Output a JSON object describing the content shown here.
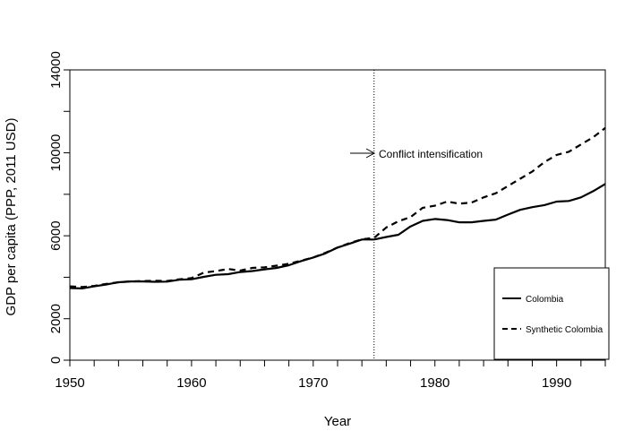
{
  "chart_data": {
    "type": "line",
    "xlabel": "Year",
    "ylabel": "GDP per capita (PPP, 2011 USD)",
    "xlim": [
      1950,
      1994
    ],
    "ylim": [
      0,
      14000
    ],
    "x_ticks": [
      1950,
      1960,
      1970,
      1980,
      1990
    ],
    "y_ticks": [
      0,
      2000,
      6000,
      10000,
      14000
    ],
    "x_tick_labels": [
      "1950",
      "1960",
      "1970",
      "1980",
      "1990"
    ],
    "y_tick_labels": [
      "0",
      "2000",
      "6000",
      "10000",
      "14000"
    ],
    "grid": false,
    "legend_position": "bottom-right",
    "series": [
      {
        "name": "Colombia",
        "style": "solid",
        "color": "#000000",
        "x": [
          1950,
          1951,
          1952,
          1953,
          1954,
          1955,
          1956,
          1957,
          1958,
          1959,
          1960,
          1961,
          1962,
          1963,
          1964,
          1965,
          1966,
          1967,
          1968,
          1969,
          1970,
          1971,
          1972,
          1973,
          1974,
          1975,
          1976,
          1977,
          1978,
          1979,
          1980,
          1981,
          1982,
          1983,
          1984,
          1985,
          1986,
          1987,
          1988,
          1989,
          1990,
          1991,
          1992,
          1993,
          1994
        ],
        "values": [
          3480,
          3460,
          3560,
          3650,
          3760,
          3800,
          3800,
          3780,
          3790,
          3880,
          3900,
          4020,
          4120,
          4150,
          4250,
          4300,
          4380,
          4450,
          4580,
          4780,
          4950,
          5150,
          5430,
          5620,
          5820,
          5820,
          5940,
          6050,
          6450,
          6720,
          6810,
          6760,
          6650,
          6650,
          6720,
          6780,
          7020,
          7250,
          7380,
          7480,
          7650,
          7680,
          7850,
          8150,
          8500
        ]
      },
      {
        "name": "Synthetic Colombia",
        "style": "dashed",
        "color": "#000000",
        "x": [
          1950,
          1951,
          1952,
          1953,
          1954,
          1955,
          1956,
          1957,
          1958,
          1959,
          1960,
          1961,
          1962,
          1963,
          1964,
          1965,
          1966,
          1967,
          1968,
          1969,
          1970,
          1971,
          1972,
          1973,
          1974,
          1975,
          1976,
          1977,
          1978,
          1979,
          1980,
          1981,
          1982,
          1983,
          1984,
          1985,
          1986,
          1987,
          1988,
          1989,
          1990,
          1991,
          1992,
          1993,
          1994
        ],
        "values": [
          3560,
          3530,
          3580,
          3680,
          3760,
          3800,
          3820,
          3830,
          3820,
          3900,
          3960,
          4220,
          4300,
          4400,
          4320,
          4450,
          4480,
          4560,
          4650,
          4800,
          4950,
          5180,
          5430,
          5650,
          5830,
          5900,
          6400,
          6700,
          6900,
          7350,
          7450,
          7650,
          7550,
          7600,
          7850,
          8050,
          8400,
          8750,
          9100,
          9550,
          9900,
          10050,
          10400,
          10750,
          11200
        ]
      }
    ],
    "annotations": [
      {
        "text": "Conflict intensification",
        "x": 1975,
        "y": 10000,
        "arrow": true
      }
    ],
    "vertical_lines": [
      {
        "x": 1975,
        "style": "dotted"
      }
    ]
  }
}
